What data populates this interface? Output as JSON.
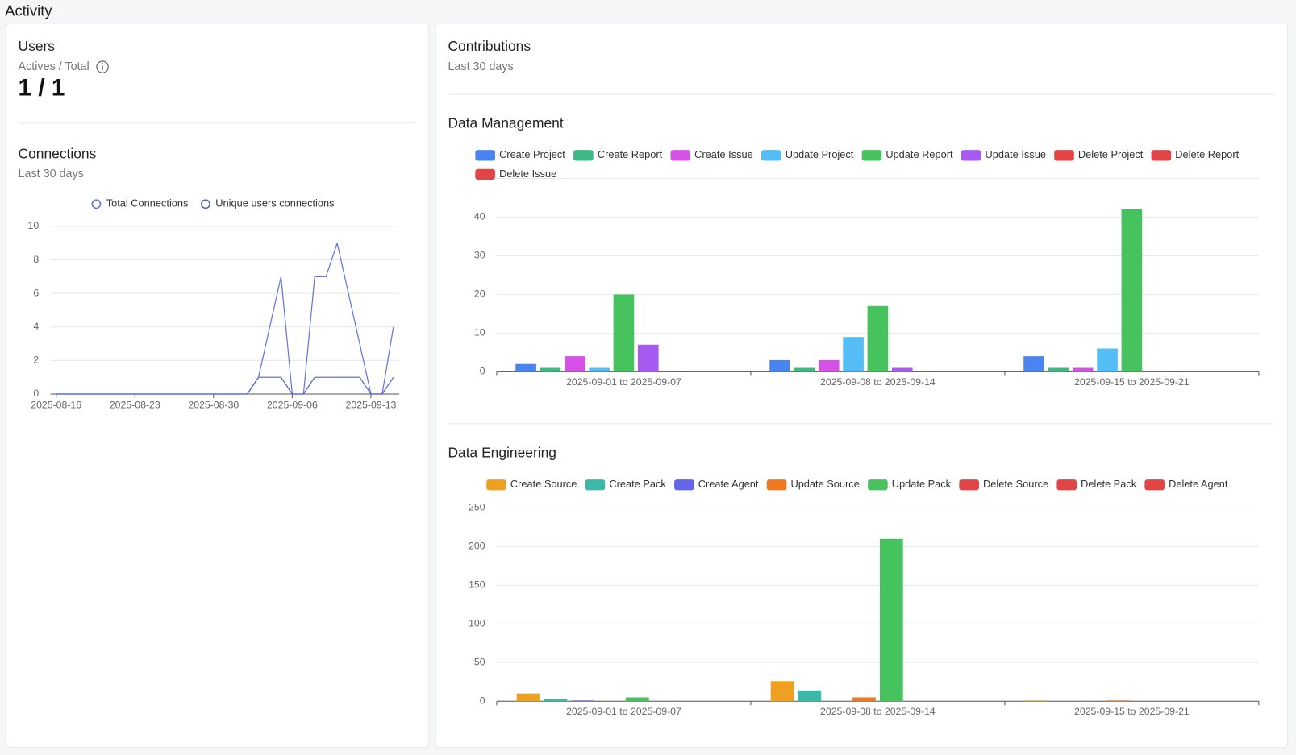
{
  "header": {
    "title": "Activity"
  },
  "users": {
    "title": "Users",
    "subtitle": "Actives / Total",
    "value": "1 / 1"
  },
  "contributions": {
    "title": "Contributions",
    "subtitle": "Last 30 days"
  },
  "chart_data": [
    {
      "type": "line",
      "title": "Connections",
      "subtitle": "Last 30 days",
      "x": [
        "2025-08-16",
        "2025-08-17",
        "2025-08-18",
        "2025-08-19",
        "2025-08-20",
        "2025-08-21",
        "2025-08-22",
        "2025-08-23",
        "2025-08-24",
        "2025-08-25",
        "2025-08-26",
        "2025-08-27",
        "2025-08-28",
        "2025-08-29",
        "2025-08-30",
        "2025-08-31",
        "2025-09-01",
        "2025-09-02",
        "2025-09-03",
        "2025-09-04",
        "2025-09-05",
        "2025-09-06",
        "2025-09-07",
        "2025-09-08",
        "2025-09-09",
        "2025-09-10",
        "2025-09-11",
        "2025-09-12",
        "2025-09-13",
        "2025-09-14",
        "2025-09-15"
      ],
      "series": [
        {
          "name": "Total Connections",
          "color": "#6673e3",
          "values": [
            0,
            0,
            0,
            0,
            0,
            0,
            0,
            0,
            0,
            0,
            0,
            0,
            0,
            0,
            0,
            0,
            0,
            0,
            1,
            4,
            7,
            0,
            0,
            7,
            7,
            9,
            6,
            3,
            0,
            0,
            4
          ]
        },
        {
          "name": "Unique users connections",
          "color": "#5166c4",
          "values": [
            0,
            0,
            0,
            0,
            0,
            0,
            0,
            0,
            0,
            0,
            0,
            0,
            0,
            0,
            0,
            0,
            0,
            0,
            1,
            1,
            1,
            0,
            0,
            1,
            1,
            1,
            1,
            1,
            0,
            0,
            1
          ]
        }
      ],
      "xlim": [
        "2025-08-16",
        "2025-09-15"
      ],
      "xticks": [
        "2025-08-16",
        "2025-08-23",
        "2025-08-30",
        "2025-09-06",
        "2025-09-13"
      ],
      "ylim": [
        0,
        10
      ],
      "yticks": [
        0,
        2,
        4,
        6,
        8,
        10
      ],
      "grid": true
    },
    {
      "type": "bar",
      "title": "Data Management",
      "categories": [
        "2025-09-01 to 2025-09-07",
        "2025-09-08 to 2025-09-14",
        "2025-09-15 to 2025-09-21"
      ],
      "series": [
        {
          "name": "Create Project",
          "color": "#4a84f0",
          "values": [
            2,
            3,
            4
          ]
        },
        {
          "name": "Create Report",
          "color": "#3dba83",
          "values": [
            1,
            1,
            1
          ]
        },
        {
          "name": "Create Issue",
          "color": "#d453e6",
          "values": [
            4,
            3,
            1
          ]
        },
        {
          "name": "Update Project",
          "color": "#55bdf5",
          "values": [
            1,
            9,
            6
          ]
        },
        {
          "name": "Update Report",
          "color": "#46c35f",
          "values": [
            20,
            17,
            42
          ]
        },
        {
          "name": "Update Issue",
          "color": "#a65af0",
          "values": [
            7,
            1,
            0
          ]
        },
        {
          "name": "Delete Project",
          "color": "#e24545",
          "values": [
            0,
            0,
            0
          ]
        },
        {
          "name": "Delete Report",
          "color": "#e24545",
          "values": [
            0,
            0,
            0
          ]
        },
        {
          "name": "Delete Issue",
          "color": "#e24545",
          "values": [
            0,
            0,
            0
          ]
        }
      ],
      "ylim": [
        0,
        50
      ],
      "yticks": [
        0,
        10,
        20,
        30,
        40
      ],
      "grid": true
    },
    {
      "type": "bar",
      "title": "Data Engineering",
      "categories": [
        "2025-09-01 to 2025-09-07",
        "2025-09-08 to 2025-09-14",
        "2025-09-15 to 2025-09-21"
      ],
      "series": [
        {
          "name": "Create Source",
          "color": "#f0a020",
          "values": [
            10,
            26,
            1
          ]
        },
        {
          "name": "Create Pack",
          "color": "#3cb8a8",
          "values": [
            3,
            14,
            0
          ]
        },
        {
          "name": "Create Agent",
          "color": "#6366e8",
          "values": [
            1,
            0,
            0
          ]
        },
        {
          "name": "Update Source",
          "color": "#f07820",
          "values": [
            0,
            5,
            1
          ]
        },
        {
          "name": "Update Pack",
          "color": "#46c35f",
          "values": [
            5,
            210,
            0
          ]
        },
        {
          "name": "Delete Source",
          "color": "#e24545",
          "values": [
            0,
            0,
            0
          ]
        },
        {
          "name": "Delete Pack",
          "color": "#e24545",
          "values": [
            0,
            0,
            0
          ]
        },
        {
          "name": "Delete Agent",
          "color": "#e24545",
          "values": [
            0,
            0,
            0
          ]
        }
      ],
      "ylim": [
        0,
        250
      ],
      "yticks": [
        0,
        50,
        100,
        150,
        200,
        250
      ],
      "grid": true
    }
  ]
}
